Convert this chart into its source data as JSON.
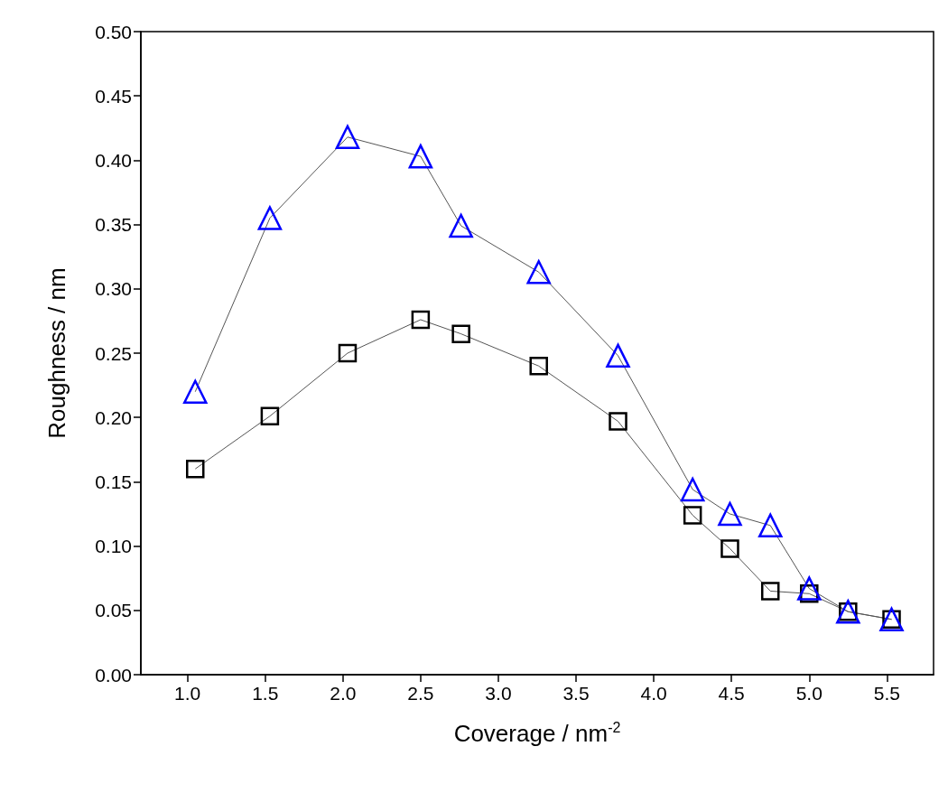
{
  "chart_data": {
    "type": "line",
    "xlabel": "Coverage / nm$^{-2}$",
    "ylabel": "Roughness / nm",
    "xlim": [
      0.7,
      5.8
    ],
    "ylim": [
      0,
      0.5
    ],
    "xticks": [
      {
        "value": 1,
        "label": "1.0"
      },
      {
        "value": 1.5,
        "label": "1.5"
      },
      {
        "value": 2,
        "label": "2.0"
      },
      {
        "value": 2.5,
        "label": "2.5"
      },
      {
        "value": 3,
        "label": "3.0"
      },
      {
        "value": 3.5,
        "label": "3.5"
      },
      {
        "value": 4,
        "label": "4.0"
      },
      {
        "value": 4.5,
        "label": "4.5"
      },
      {
        "value": 5,
        "label": "5.0"
      },
      {
        "value": 5.5,
        "label": "5.5"
      }
    ],
    "yticks": [
      {
        "value": 0,
        "label": "0.00"
      },
      {
        "value": 0.05,
        "label": "0.05"
      },
      {
        "value": 0.1,
        "label": "0.10"
      },
      {
        "value": 0.15,
        "label": "0.15"
      },
      {
        "value": 0.2,
        "label": "0.20"
      },
      {
        "value": 0.25,
        "label": "0.25"
      },
      {
        "value": 0.3,
        "label": "0.30"
      },
      {
        "value": 0.35,
        "label": "0.35"
      },
      {
        "value": 0.4,
        "label": "0.40"
      },
      {
        "value": 0.45,
        "label": "0.45"
      },
      {
        "value": 0.5,
        "label": "0.50"
      }
    ],
    "x": [
      1.05,
      1.53,
      2.03,
      2.5,
      2.76,
      3.26,
      3.77,
      4.25,
      4.49,
      4.75,
      5.0,
      5.25,
      5.53
    ],
    "series": [
      {
        "color": "#000000",
        "marker": "square",
        "values": [
          0.16,
          0.201,
          0.25,
          0.276,
          0.265,
          0.24,
          0.197,
          0.124,
          0.098,
          0.065,
          0.063,
          0.049,
          0.043
        ]
      },
      {
        "color": "#0000ff",
        "marker": "triangle",
        "values": [
          0.22,
          0.355,
          0.418,
          0.403,
          0.349,
          0.313,
          0.248,
          0.144,
          0.125,
          0.116,
          0.067,
          0.049,
          0.043
        ]
      }
    ]
  }
}
